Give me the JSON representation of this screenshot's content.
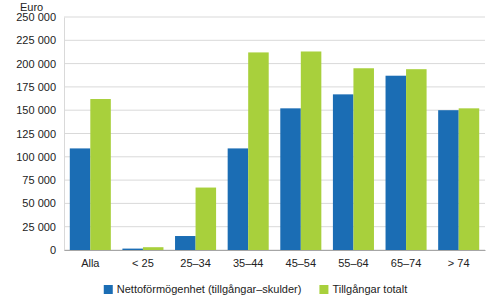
{
  "chart_data": {
    "type": "bar",
    "y_label": "Euro",
    "categories": [
      "Alla",
      "< 25",
      "25–34",
      "35–44",
      "45–54",
      "55–64",
      "65–74",
      "> 74"
    ],
    "series": [
      {
        "name": "Nettoförmögenhet (tillgångar–skulder)",
        "color": "#1b6db4",
        "values": [
          109000,
          1500,
          15000,
          109000,
          152000,
          167000,
          187000,
          150000
        ]
      },
      {
        "name": "Tillgångar totalt",
        "color": "#a8d03c",
        "values": [
          162000,
          3000,
          67000,
          212000,
          213000,
          195000,
          194000,
          152000
        ]
      }
    ],
    "ylim": [
      0,
      250000
    ],
    "yticks": [
      0,
      {
        "value": 25000,
        "label": "25 000"
      },
      {
        "value": 50000,
        "label": "50 000"
      },
      {
        "value": 75000,
        "label": "75 000"
      },
      {
        "value": 100000,
        "label": "100 000"
      },
      {
        "value": 125000,
        "label": "125 000"
      },
      {
        "value": 150000,
        "label": "150 000"
      },
      {
        "value": 175000,
        "label": "175 000"
      },
      {
        "value": 200000,
        "label": "200 000"
      },
      {
        "value": 225000,
        "label": "225 000"
      },
      {
        "value": 250000,
        "label": "250 000"
      }
    ],
    "grid": true,
    "legend": "bottom"
  }
}
